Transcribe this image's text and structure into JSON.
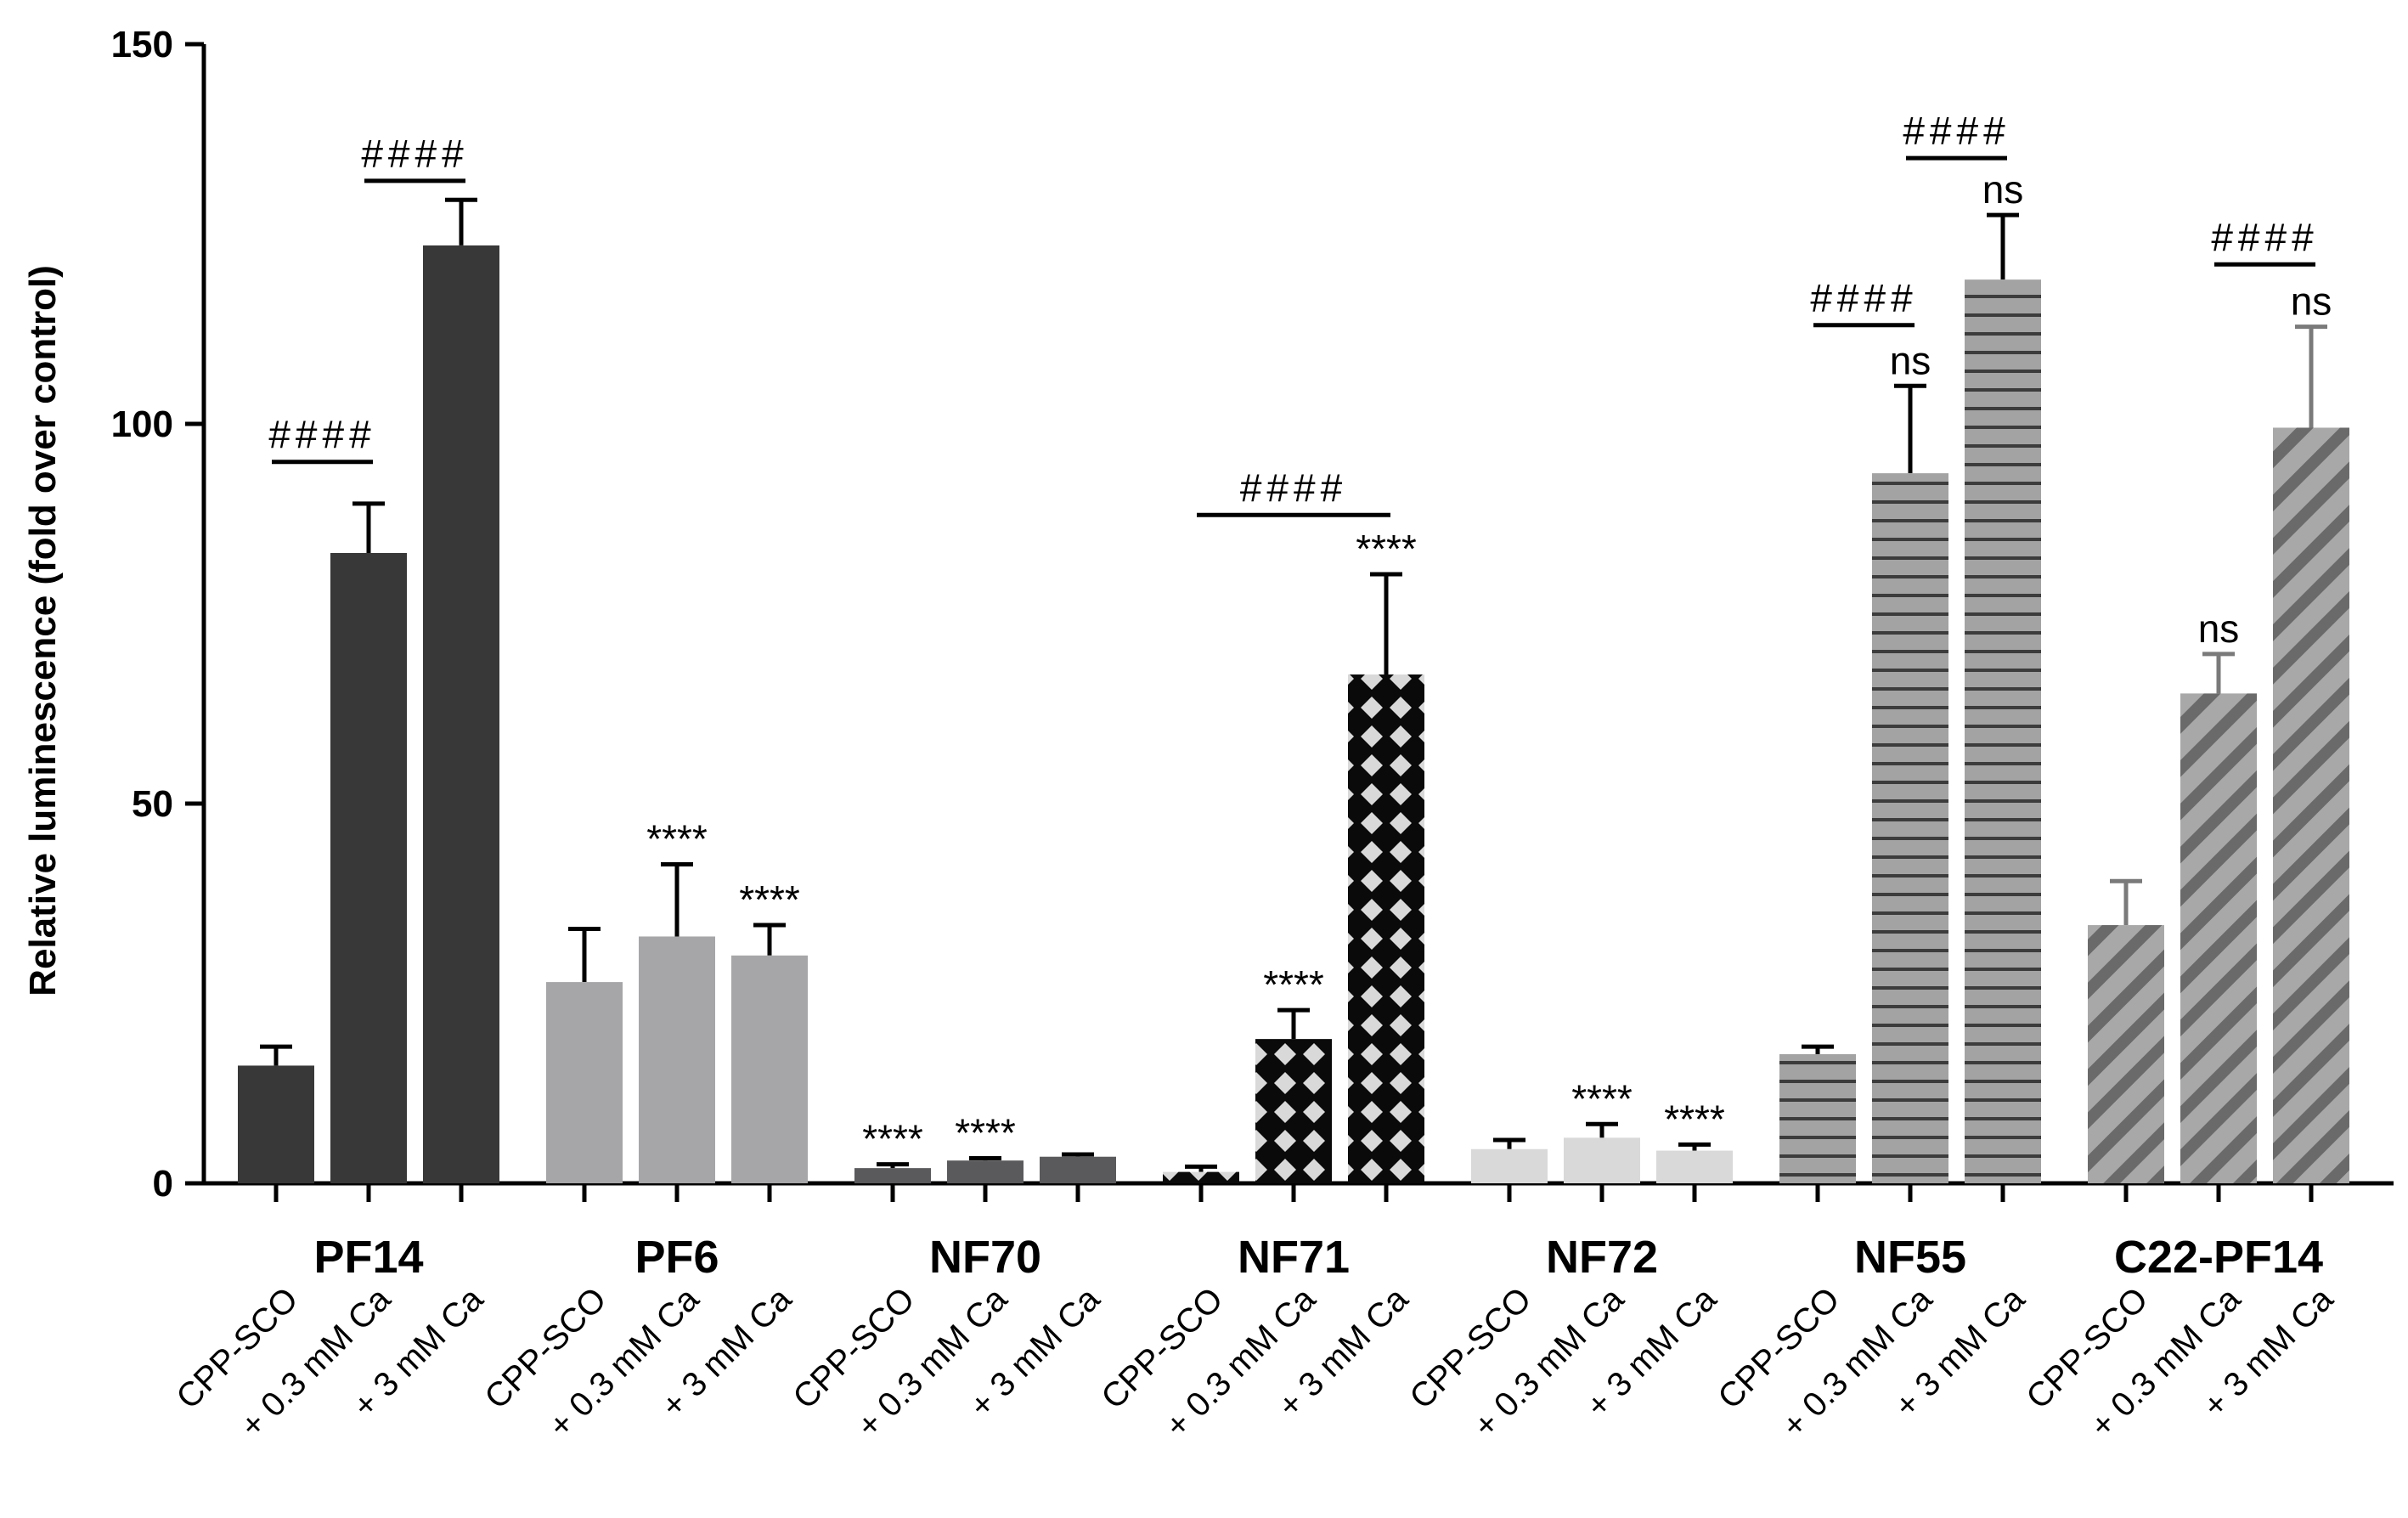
{
  "chart_data": {
    "type": "bar",
    "ylabel": "Relative luminescence (fold over control)",
    "ylim": [
      0,
      150
    ],
    "yticks": [
      0,
      50,
      100,
      150
    ],
    "conditions": [
      "CPP-SCO",
      "+ 0.3 mM Ca",
      "+ 3 mM Ca"
    ],
    "groups": [
      {
        "name": "PF14",
        "pattern": "solid",
        "color": "#383838",
        "values": [
          15.5,
          83,
          123.5
        ],
        "errors": [
          2.5,
          6.5,
          6
        ],
        "annotations": [
          "",
          "",
          ""
        ],
        "brackets": [
          {
            "from": 0,
            "to": 1,
            "label": "####",
            "y": 95
          },
          {
            "from": 1,
            "to": 2,
            "label": "####",
            "y": 132
          }
        ]
      },
      {
        "name": "PF6",
        "pattern": "solid",
        "color": "#a6a6a8",
        "values": [
          26.5,
          32.5,
          30
        ],
        "errors": [
          7,
          9.5,
          4
        ],
        "annotations": [
          "",
          "****",
          "****"
        ],
        "brackets": []
      },
      {
        "name": "NF70",
        "pattern": "solid",
        "color": "#5a5a5c",
        "values": [
          2,
          3,
          3.5
        ],
        "errors": [
          0.5,
          0.3,
          0.3
        ],
        "annotations": [
          "****",
          "****",
          ""
        ],
        "brackets": []
      },
      {
        "name": "NF71",
        "pattern": "diamond",
        "color": "#0a0a0a",
        "values": [
          1.5,
          19,
          67
        ],
        "errors": [
          0.7,
          3.8,
          13.2
        ],
        "annotations": [
          "",
          "****",
          "****"
        ],
        "brackets": [
          {
            "from": 0,
            "to": 2,
            "label": "####",
            "y": 88
          }
        ]
      },
      {
        "name": "NF72",
        "pattern": "solid",
        "color": "#d9d9d9",
        "values": [
          4.5,
          6,
          4.3
        ],
        "errors": [
          1.2,
          1.8,
          0.8
        ],
        "annotations": [
          "",
          "****",
          "****"
        ],
        "brackets": []
      },
      {
        "name": "NF55",
        "pattern": "hstripe",
        "color": "#a3a3a3",
        "values": [
          17,
          93.5,
          119
        ],
        "errors": [
          1,
          11.5,
          8.5
        ],
        "annotations": [
          "",
          "ns",
          "ns"
        ],
        "brackets": [
          {
            "from": 0,
            "to": 1,
            "label": "####",
            "y": 113
          },
          {
            "from": 1,
            "to": 2,
            "label": "####",
            "y": 135
          }
        ]
      },
      {
        "name": "C22-PF14",
        "pattern": "diagonal",
        "color": "#999999",
        "values": [
          34,
          64.5,
          99.5
        ],
        "errors": [
          5.8,
          5.2,
          13.3
        ],
        "annotations": [
          "",
          "ns",
          "ns"
        ],
        "brackets": [
          {
            "from": 1,
            "to": 2,
            "label": "####",
            "y": 121
          }
        ]
      }
    ]
  }
}
